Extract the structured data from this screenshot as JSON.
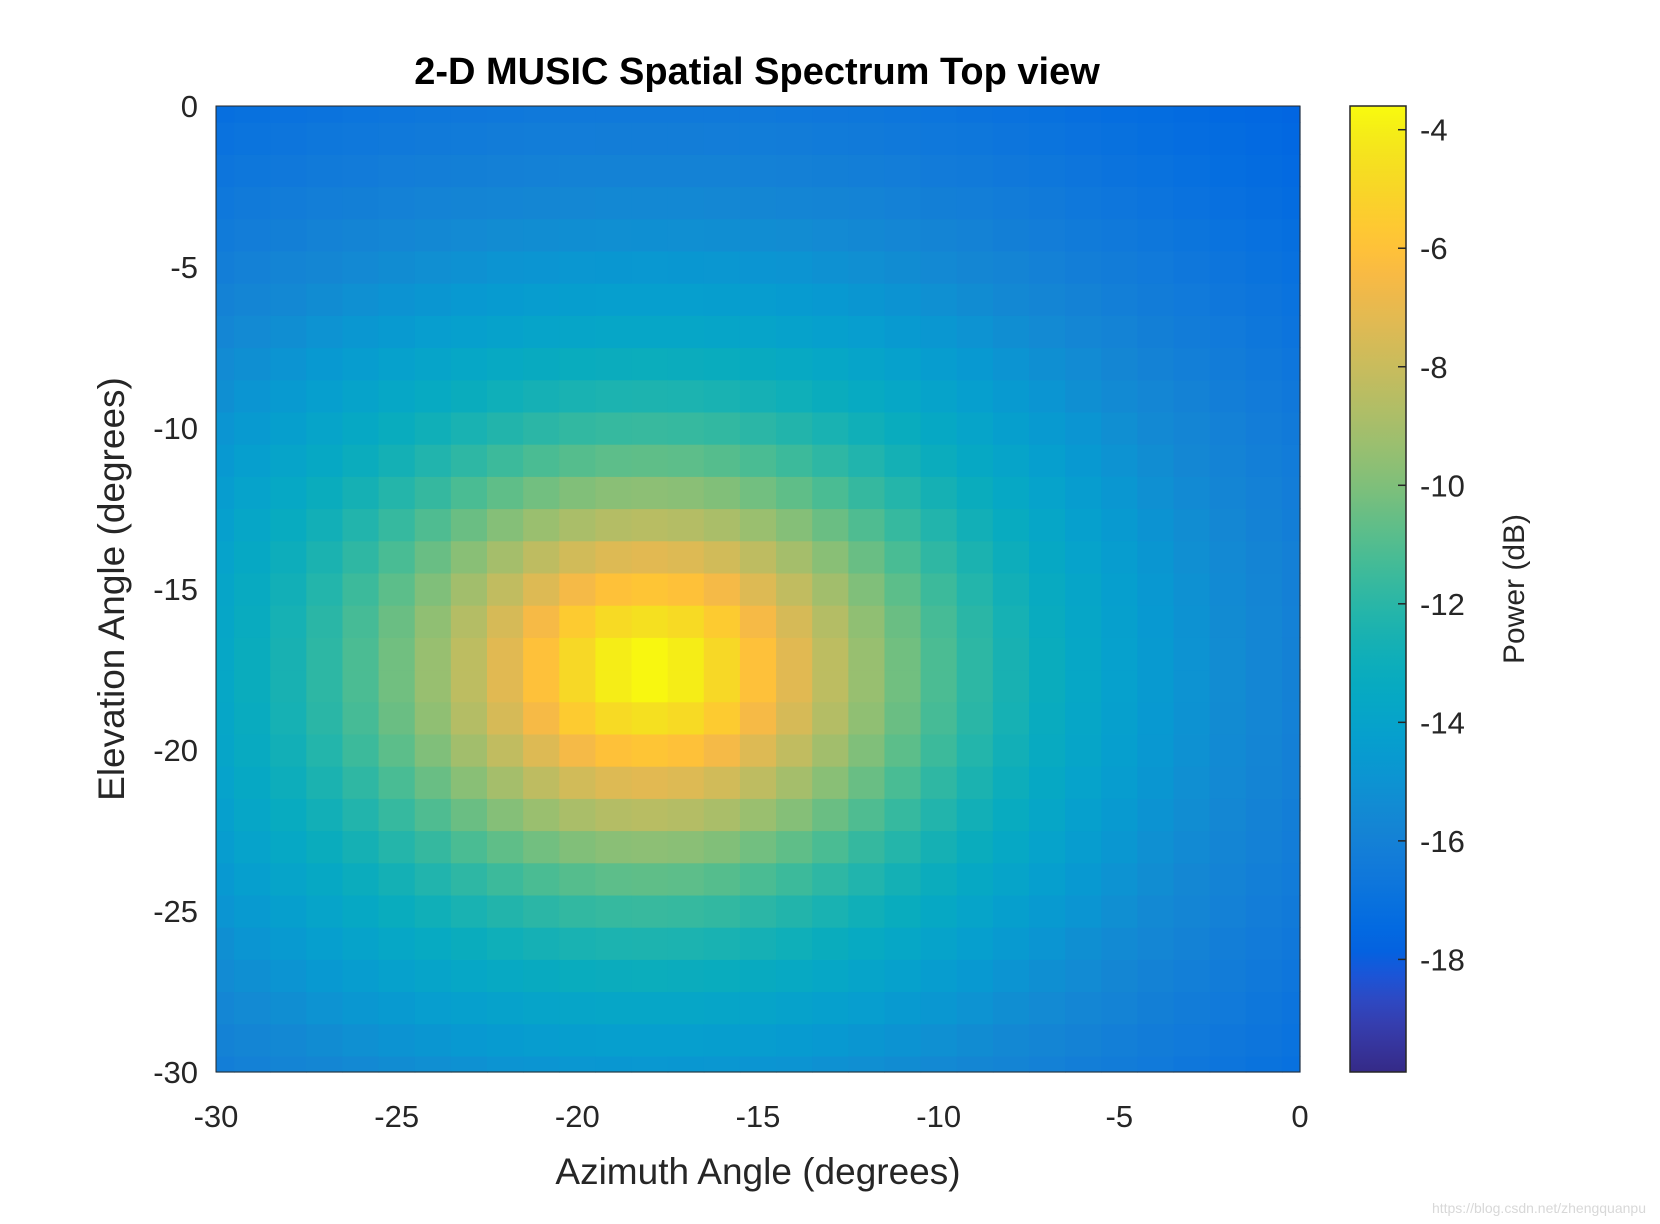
{
  "chart_data": {
    "type": "heatmap",
    "title": "2-D MUSIC Spatial Spectrum Top view",
    "xlabel": "Azimuth Angle (degrees)",
    "ylabel": "Elevation Angle (degrees)",
    "xlim": [
      -30,
      0
    ],
    "ylim": [
      -30,
      0
    ],
    "xticks": [
      -30,
      -25,
      -20,
      -15,
      -10,
      -5,
      0
    ],
    "yticks": [
      0,
      -5,
      -10,
      -15,
      -20,
      -25,
      -30
    ],
    "grid_step": 1,
    "peak": {
      "azimuth": -18,
      "elevation": -17.5,
      "power_db": -3.6
    },
    "floor_db": -19.9,
    "colorbar": {
      "label": "Power (dB)",
      "range": [
        -19.9,
        -3.6
      ],
      "ticks": [
        -4,
        -6,
        -8,
        -10,
        -12,
        -14,
        -16,
        -18
      ],
      "colormap": "parula"
    }
  },
  "watermark": "https://blog.csdn.net/zhengquanpu"
}
